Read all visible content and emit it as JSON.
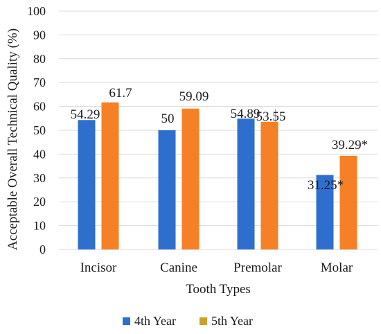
{
  "chart_data": {
    "type": "bar",
    "categories": [
      "Incisor",
      "Canine",
      "Premolar",
      "Molar"
    ],
    "series": [
      {
        "name": "4th Year",
        "color": "#2e6fcd",
        "values": [
          54.29,
          50,
          54.89,
          31.25
        ],
        "labels": [
          "54.29",
          "50",
          "54.89",
          "31.25*"
        ]
      },
      {
        "name": "5th Year",
        "color": "#f58025",
        "legend_color": "#c9a227",
        "values": [
          61.7,
          59.09,
          53.55,
          39.29
        ],
        "labels": [
          "61.7",
          "59.09",
          "53.55",
          "39.29*"
        ]
      }
    ],
    "yticks": [
      "0",
      "10",
      "20",
      "30",
      "40",
      "50",
      "60",
      "70",
      "80",
      "90",
      "100"
    ],
    "ylim": [
      0,
      100
    ],
    "xlabel": "Tooth Types",
    "ylabel": "Acceptable Overall Technical Quality (%)",
    "grid": true,
    "legend": "bottom"
  }
}
